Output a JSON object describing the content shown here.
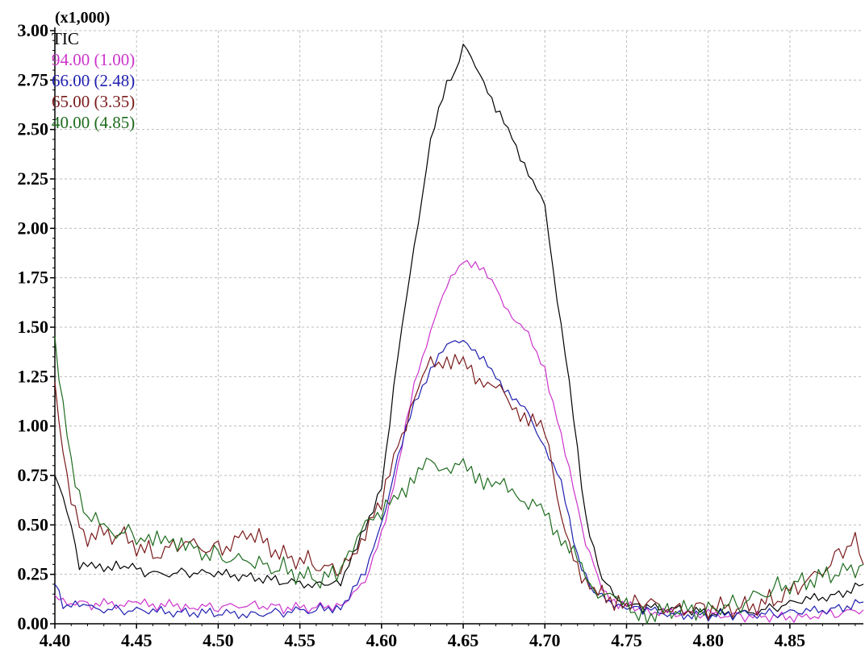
{
  "chart_data": {
    "type": "line",
    "scale_label": "(x1,000)",
    "xlabel": "",
    "ylabel": "",
    "xlim": [
      4.4,
      4.895
    ],
    "ylim": [
      0.0,
      3.0
    ],
    "grid": true,
    "legend_position": "top-left",
    "x_ticks": [
      "4.40",
      "4.45",
      "4.50",
      "4.55",
      "4.60",
      "4.65",
      "4.70",
      "4.75",
      "4.80",
      "4.85"
    ],
    "y_ticks": [
      "0.00",
      "0.25",
      "0.50",
      "0.75",
      "1.00",
      "1.25",
      "1.50",
      "1.75",
      "2.00",
      "2.25",
      "2.50",
      "2.75",
      "3.00"
    ],
    "series": [
      {
        "name": "TIC",
        "color": "#000000",
        "points": [
          [
            4.4,
            0.75
          ],
          [
            4.41,
            0.5
          ],
          [
            4.415,
            0.3
          ],
          [
            4.425,
            0.28
          ],
          [
            4.44,
            0.3
          ],
          [
            4.46,
            0.25
          ],
          [
            4.48,
            0.26
          ],
          [
            4.5,
            0.25
          ],
          [
            4.52,
            0.24
          ],
          [
            4.54,
            0.21
          ],
          [
            4.56,
            0.2
          ],
          [
            4.575,
            0.22
          ],
          [
            4.585,
            0.38
          ],
          [
            4.6,
            0.7
          ],
          [
            4.61,
            1.35
          ],
          [
            4.62,
            1.9
          ],
          [
            4.63,
            2.45
          ],
          [
            4.64,
            2.72
          ],
          [
            4.645,
            2.8
          ],
          [
            4.65,
            2.92
          ],
          [
            4.66,
            2.8
          ],
          [
            4.67,
            2.6
          ],
          [
            4.68,
            2.46
          ],
          [
            4.69,
            2.28
          ],
          [
            4.7,
            2.1
          ],
          [
            4.705,
            1.8
          ],
          [
            4.715,
            1.2
          ],
          [
            4.725,
            0.55
          ],
          [
            4.735,
            0.22
          ],
          [
            4.745,
            0.12
          ],
          [
            4.76,
            0.08
          ],
          [
            4.78,
            0.08
          ],
          [
            4.8,
            0.05
          ],
          [
            4.82,
            0.05
          ],
          [
            4.84,
            0.08
          ],
          [
            4.86,
            0.12
          ],
          [
            4.88,
            0.15
          ],
          [
            4.895,
            0.2
          ]
        ]
      },
      {
        "name": "94.00 (1.00)",
        "color": "#cc33cc",
        "points": [
          [
            4.4,
            0.12
          ],
          [
            4.42,
            0.1
          ],
          [
            4.45,
            0.1
          ],
          [
            4.48,
            0.09
          ],
          [
            4.5,
            0.08
          ],
          [
            4.52,
            0.1
          ],
          [
            4.54,
            0.08
          ],
          [
            4.56,
            0.08
          ],
          [
            4.575,
            0.1
          ],
          [
            4.59,
            0.2
          ],
          [
            4.6,
            0.45
          ],
          [
            4.61,
            0.8
          ],
          [
            4.62,
            1.2
          ],
          [
            4.63,
            1.5
          ],
          [
            4.64,
            1.7
          ],
          [
            4.65,
            1.85
          ],
          [
            4.66,
            1.8
          ],
          [
            4.67,
            1.7
          ],
          [
            4.68,
            1.55
          ],
          [
            4.69,
            1.45
          ],
          [
            4.7,
            1.3
          ],
          [
            4.705,
            1.1
          ],
          [
            4.715,
            0.8
          ],
          [
            4.725,
            0.4
          ],
          [
            4.735,
            0.18
          ],
          [
            4.745,
            0.1
          ],
          [
            4.76,
            0.07
          ],
          [
            4.78,
            0.05
          ],
          [
            4.8,
            0.05
          ],
          [
            4.82,
            0.04
          ],
          [
            4.84,
            0.03
          ],
          [
            4.86,
            0.04
          ],
          [
            4.88,
            0.05
          ],
          [
            4.895,
            0.07
          ]
        ]
      },
      {
        "name": "66.00 (2.48)",
        "color": "#1f1fb0",
        "points": [
          [
            4.4,
            0.2
          ],
          [
            4.405,
            0.1
          ],
          [
            4.42,
            0.08
          ],
          [
            4.44,
            0.07
          ],
          [
            4.46,
            0.06
          ],
          [
            4.48,
            0.06
          ],
          [
            4.5,
            0.05
          ],
          [
            4.52,
            0.05
          ],
          [
            4.54,
            0.06
          ],
          [
            4.56,
            0.07
          ],
          [
            4.575,
            0.09
          ],
          [
            4.59,
            0.25
          ],
          [
            4.6,
            0.5
          ],
          [
            4.61,
            0.85
          ],
          [
            4.62,
            1.1
          ],
          [
            4.63,
            1.3
          ],
          [
            4.64,
            1.4
          ],
          [
            4.65,
            1.45
          ],
          [
            4.66,
            1.35
          ],
          [
            4.67,
            1.25
          ],
          [
            4.68,
            1.15
          ],
          [
            4.69,
            1.05
          ],
          [
            4.7,
            0.9
          ],
          [
            4.71,
            0.7
          ],
          [
            4.72,
            0.35
          ],
          [
            4.73,
            0.15
          ],
          [
            4.745,
            0.1
          ],
          [
            4.76,
            0.07
          ],
          [
            4.78,
            0.05
          ],
          [
            4.8,
            0.04
          ],
          [
            4.82,
            0.05
          ],
          [
            4.84,
            0.05
          ],
          [
            4.86,
            0.06
          ],
          [
            4.88,
            0.08
          ],
          [
            4.895,
            0.11
          ]
        ]
      },
      {
        "name": "65.00 (3.35)",
        "color": "#7a1a1a",
        "points": [
          [
            4.4,
            1.2
          ],
          [
            4.405,
            0.9
          ],
          [
            4.41,
            0.6
          ],
          [
            4.42,
            0.45
          ],
          [
            4.44,
            0.45
          ],
          [
            4.46,
            0.35
          ],
          [
            4.48,
            0.4
          ],
          [
            4.5,
            0.38
          ],
          [
            4.52,
            0.45
          ],
          [
            4.54,
            0.35
          ],
          [
            4.56,
            0.3
          ],
          [
            4.575,
            0.25
          ],
          [
            4.585,
            0.4
          ],
          [
            4.6,
            0.6
          ],
          [
            4.61,
            0.9
          ],
          [
            4.62,
            1.15
          ],
          [
            4.63,
            1.3
          ],
          [
            4.64,
            1.35
          ],
          [
            4.65,
            1.3
          ],
          [
            4.66,
            1.25
          ],
          [
            4.67,
            1.2
          ],
          [
            4.68,
            1.1
          ],
          [
            4.69,
            1.05
          ],
          [
            4.7,
            0.95
          ],
          [
            4.705,
            0.8
          ],
          [
            4.71,
            0.5
          ],
          [
            4.72,
            0.3
          ],
          [
            4.73,
            0.15
          ],
          [
            4.745,
            0.12
          ],
          [
            4.76,
            0.1
          ],
          [
            4.78,
            0.08
          ],
          [
            4.8,
            0.08
          ],
          [
            4.82,
            0.08
          ],
          [
            4.84,
            0.12
          ],
          [
            4.86,
            0.2
          ],
          [
            4.88,
            0.35
          ],
          [
            4.89,
            0.45
          ],
          [
            4.895,
            0.3
          ]
        ]
      },
      {
        "name": "40.00 (4.85)",
        "color": "#1e6b1e",
        "points": [
          [
            4.4,
            1.45
          ],
          [
            4.405,
            1.1
          ],
          [
            4.41,
            0.8
          ],
          [
            4.42,
            0.55
          ],
          [
            4.43,
            0.48
          ],
          [
            4.45,
            0.45
          ],
          [
            4.46,
            0.4
          ],
          [
            4.47,
            0.45
          ],
          [
            4.48,
            0.38
          ],
          [
            4.5,
            0.35
          ],
          [
            4.52,
            0.3
          ],
          [
            4.54,
            0.28
          ],
          [
            4.56,
            0.22
          ],
          [
            4.575,
            0.25
          ],
          [
            4.59,
            0.55
          ],
          [
            4.6,
            0.55
          ],
          [
            4.61,
            0.65
          ],
          [
            4.62,
            0.75
          ],
          [
            4.63,
            0.8
          ],
          [
            4.64,
            0.8
          ],
          [
            4.65,
            0.78
          ],
          [
            4.66,
            0.75
          ],
          [
            4.67,
            0.7
          ],
          [
            4.68,
            0.68
          ],
          [
            4.69,
            0.62
          ],
          [
            4.7,
            0.55
          ],
          [
            4.71,
            0.45
          ],
          [
            4.72,
            0.3
          ],
          [
            4.73,
            0.18
          ],
          [
            4.745,
            0.1
          ],
          [
            4.76,
            0.05
          ],
          [
            4.78,
            0.06
          ],
          [
            4.8,
            0.08
          ],
          [
            4.82,
            0.1
          ],
          [
            4.84,
            0.18
          ],
          [
            4.86,
            0.22
          ],
          [
            4.88,
            0.25
          ],
          [
            4.895,
            0.3
          ]
        ]
      }
    ]
  }
}
